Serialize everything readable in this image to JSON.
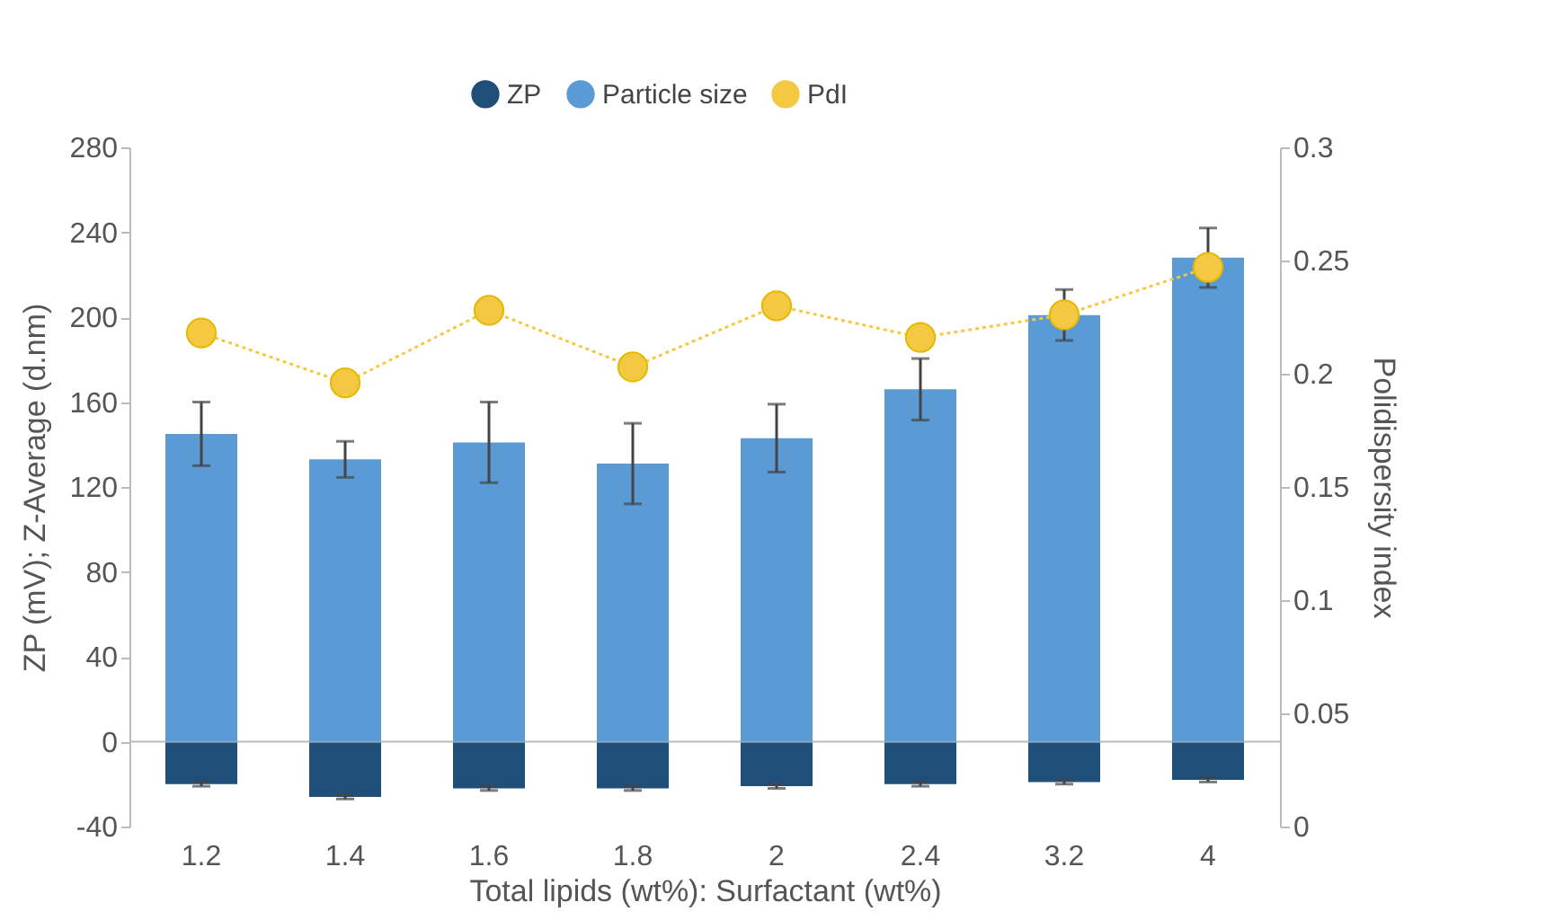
{
  "chart_data": {
    "type": "bar",
    "xlabel": "Total lipids (wt%): Surfactant (wt%)",
    "ylabel": "ZP (mV); Z-Average (d.nm)",
    "y2label": "Polidispersity index",
    "categories": [
      "1.2",
      "1.4",
      "1.6",
      "1.8",
      "2",
      "2.4",
      "3.2",
      "4"
    ],
    "series": [
      {
        "name": "ZP",
        "color": "#1f4e79",
        "values": [
          -20,
          -26,
          -22,
          -22,
          -21,
          -20,
          -19,
          -18
        ],
        "errors": [
          1,
          1,
          1,
          1,
          1,
          1,
          1,
          1
        ]
      },
      {
        "name": "Particle size",
        "color": "#5b9bd5",
        "values": [
          145,
          133,
          141,
          131,
          143,
          166,
          201,
          228
        ],
        "errors": [
          15,
          8.5,
          19,
          19,
          16,
          14.5,
          12,
          14
        ]
      },
      {
        "name": "PdI",
        "type": "line",
        "axis": "y2",
        "color": "#f5c842",
        "marker": "circle",
        "line_style": "dotted",
        "values": [
          0.218,
          0.196,
          0.228,
          0.203,
          0.23,
          0.216,
          0.226,
          0.247
        ]
      }
    ],
    "ylim": [
      -40,
      280
    ],
    "yticks": [
      -40,
      0,
      40,
      80,
      120,
      160,
      200,
      240,
      280
    ],
    "y2lim": [
      0,
      0.3
    ],
    "y2ticks": [
      0,
      0.05,
      0.1,
      0.15,
      0.2,
      0.25,
      0.3
    ],
    "ref_lines": [
      {
        "axis": "y",
        "value": 0,
        "color": "#bbbbbb"
      }
    ],
    "grid": false,
    "legend": "top",
    "stacked": true
  }
}
